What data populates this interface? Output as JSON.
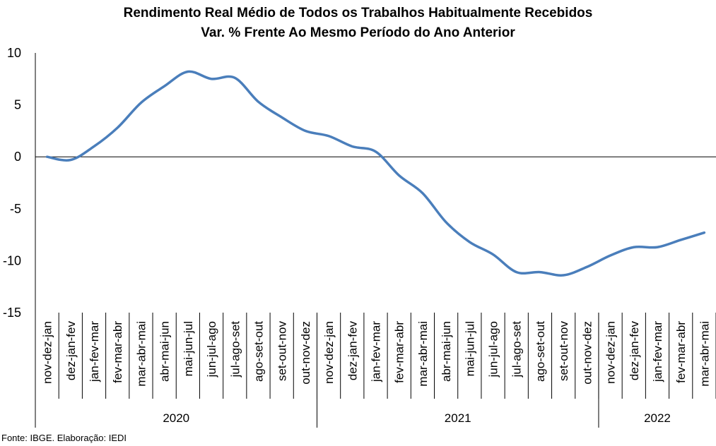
{
  "chart_data": {
    "type": "line",
    "title": "Rendimento Real Médio de Todos os Trabalhos Habitualmente Recebidos",
    "subtitle": "Var. % Frente Ao Mesmo Período do Ano Anterior",
    "ylim": [
      -15,
      10
    ],
    "yticks": [
      10,
      5,
      0,
      -5,
      -10,
      -15
    ],
    "categories": [
      "nov-dez-jan",
      "dez-jan-fev",
      "jan-fev-mar",
      "fev-mar-abr",
      "mar-abr-mai",
      "abr-mai-jun",
      "mai-jun-jul",
      "jun-jul-ago",
      "jul-ago-set",
      "ago-set-out",
      "set-out-nov",
      "out-nov-dez",
      "nov-dez-jan",
      "dez-jan-fev",
      "jan-fev-mar",
      "fev-mar-abr",
      "mar-abr-mai",
      "abr-mai-jun",
      "mai-jun-jul",
      "jun-jul-ago",
      "jul-ago-set",
      "ago-set-out",
      "set-out-nov",
      "out-nov-dez",
      "nov-dez-jan",
      "dez-jan-fev",
      "jan-fev-mar",
      "fev-mar-abr",
      "mar-abr-mai"
    ],
    "groups": [
      {
        "label": "2020",
        "count": 12
      },
      {
        "label": "2021",
        "count": 12
      },
      {
        "label": "2022",
        "count": 5
      }
    ],
    "series": [
      {
        "values": [
          0.0,
          -0.3,
          1.0,
          2.8,
          5.2,
          6.8,
          8.2,
          7.5,
          7.6,
          5.3,
          3.8,
          2.5,
          2.0,
          1.0,
          0.5,
          -1.8,
          -3.5,
          -6.3,
          -8.2,
          -9.4,
          -11.1,
          -11.1,
          -11.4,
          -10.6,
          -9.5,
          -8.7,
          -8.7,
          -8.0,
          -7.3
        ],
        "color": "#4A7EBB"
      }
    ],
    "grid": false,
    "legend": "none"
  },
  "source": "Fonte: IBGE. Elaboração: IEDI"
}
